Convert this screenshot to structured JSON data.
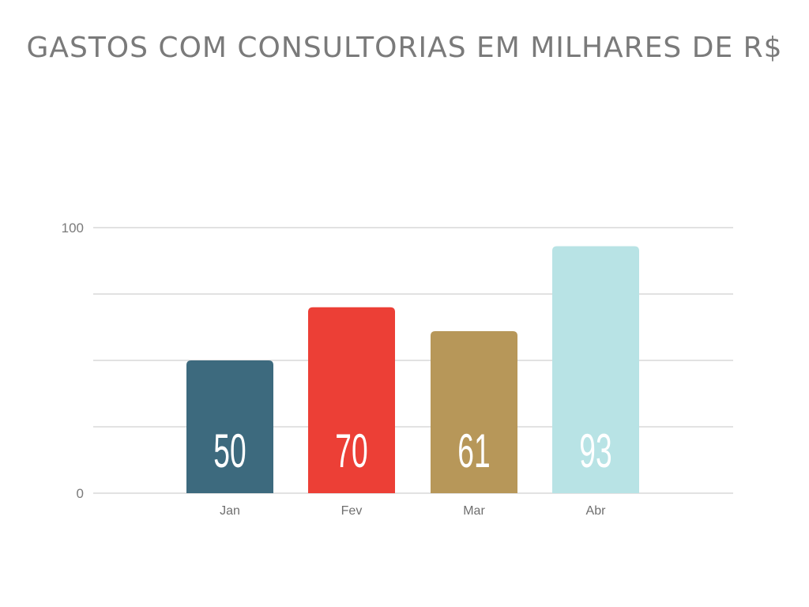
{
  "chart_data": {
    "type": "bar",
    "title": "GASTOS COM CONSULTORIAS EM MILHARES DE R$",
    "categories": [
      "Jan",
      "Fev",
      "Mar",
      "Abr"
    ],
    "values": [
      50,
      70,
      61,
      93
    ],
    "value_labels": [
      "50",
      "70",
      "61",
      "93"
    ],
    "bar_colors": [
      "#3d6a7e",
      "#ec3f36",
      "#b79759",
      "#b8e3e5"
    ],
    "ylim": [
      0,
      100
    ],
    "y_tick_labels": [
      {
        "value": 100,
        "label": "100"
      },
      {
        "value": 0,
        "label": "0"
      }
    ],
    "gridlines": [
      0,
      25,
      50,
      75,
      100
    ],
    "grid": true,
    "legend": "none",
    "xlabel": "",
    "ylabel": ""
  }
}
